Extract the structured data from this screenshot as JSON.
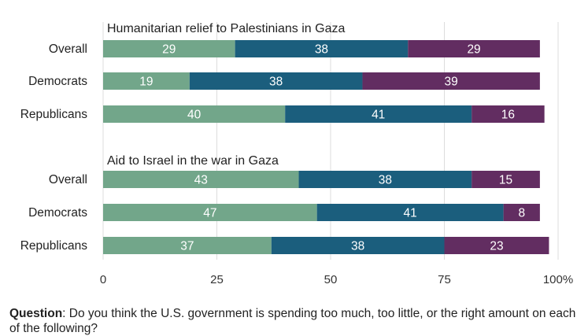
{
  "chart_data": {
    "type": "bar",
    "orientation": "horizontal",
    "stacked": true,
    "xlim": [
      0,
      100
    ],
    "x_ticks": [
      "0",
      "25",
      "50",
      "75",
      "100%"
    ],
    "x_tick_values": [
      0,
      25,
      50,
      75,
      100
    ],
    "grid": true,
    "groups": [
      {
        "title": "Humanitarian relief to Palestinians in Gaza",
        "categories": [
          "Overall",
          "Democrats",
          "Republicans"
        ],
        "segments": [
          [
            29,
            38,
            29
          ],
          [
            19,
            38,
            39
          ],
          [
            40,
            41,
            16
          ]
        ]
      },
      {
        "title": "Aid to Israel in the war in Gaza",
        "categories": [
          "Overall",
          "Democrats",
          "Republicans"
        ],
        "segments": [
          [
            43,
            38,
            15
          ],
          [
            47,
            41,
            8
          ],
          [
            37,
            38,
            23
          ]
        ]
      }
    ],
    "colors": [
      "#72a68a",
      "#1b5e7d",
      "#622d61"
    ]
  },
  "question": {
    "label": "Question",
    "text": ": Do you think the U.S. government is spending too much, too little, or the right amount on each of the following?"
  }
}
